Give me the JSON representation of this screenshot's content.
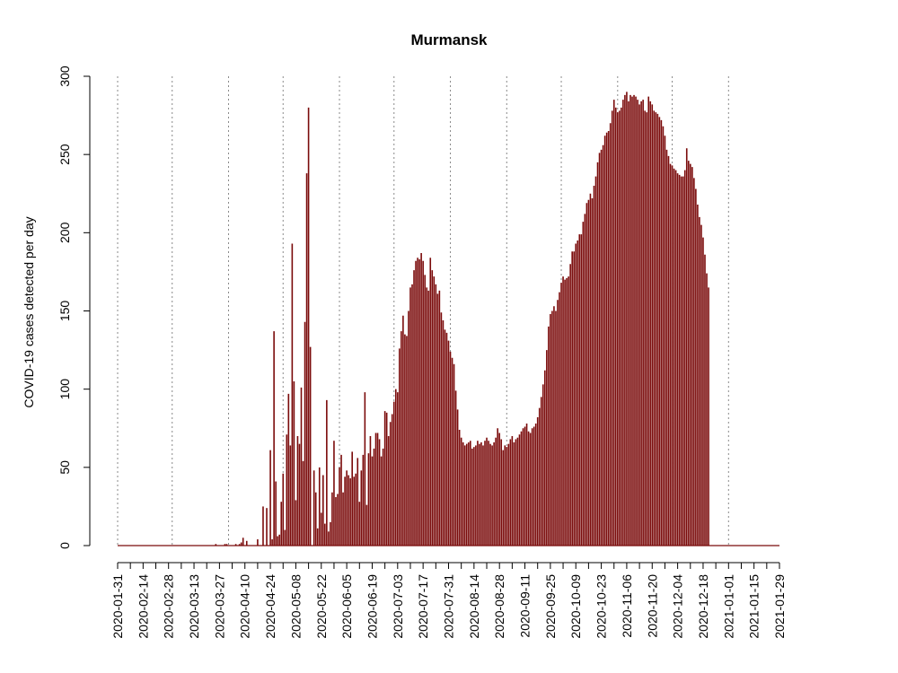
{
  "chart_data": {
    "type": "bar",
    "title": "Murmansk",
    "xlabel": "",
    "ylabel": "COVID-19 cases detected per day",
    "ylim": [
      0,
      300
    ],
    "yticks": [
      0,
      50,
      100,
      150,
      200,
      250,
      300
    ],
    "x_start": "2020-01-31",
    "x_end": "2021-01-29",
    "x_tick_labels": [
      "2020-01-31",
      "2020-02-14",
      "2020-02-28",
      "2020-03-13",
      "2020-03-27",
      "2020-04-10",
      "2020-04-24",
      "2020-05-08",
      "2020-05-22",
      "2020-06-05",
      "2020-06-19",
      "2020-07-03",
      "2020-07-17",
      "2020-07-31",
      "2020-08-14",
      "2020-08-28",
      "2020-09-11",
      "2020-09-25",
      "2020-10-09",
      "2020-10-23",
      "2020-11-06",
      "2020-11-20",
      "2020-12-04",
      "2020-12-18",
      "2021-01-01",
      "2021-01-15",
      "2021-01-29"
    ],
    "gridlines_x": [
      "2020-01-31",
      "2020-03-01",
      "2020-04-01",
      "2020-05-01",
      "2020-06-01",
      "2020-07-01",
      "2020-08-01",
      "2020-09-01",
      "2020-10-01",
      "2020-11-01",
      "2020-12-01",
      "2021-01-01"
    ],
    "grid": "vertical dotted lines at month starts",
    "bar_color": "#7a0a0a",
    "values": [
      0,
      0,
      0,
      0,
      0,
      0,
      0,
      0,
      0,
      0,
      0,
      0,
      0,
      0,
      0,
      0,
      0,
      0,
      0,
      0,
      0,
      0,
      0,
      0,
      0,
      0,
      0,
      0,
      0,
      0,
      0,
      0,
      0,
      0,
      0,
      0,
      0,
      0,
      0,
      0,
      0,
      0,
      0,
      0,
      0,
      0,
      0,
      0,
      0,
      0,
      0,
      0,
      0,
      0,
      1,
      0,
      0,
      0,
      0,
      1,
      1,
      0,
      0,
      0,
      0,
      1,
      0,
      1,
      2,
      5,
      0,
      3,
      0,
      0,
      0,
      0,
      0,
      4,
      0,
      0,
      25,
      0,
      24,
      0,
      61,
      4,
      137,
      41,
      6,
      7,
      28,
      46,
      10,
      71,
      97,
      64,
      193,
      105,
      29,
      70,
      65,
      101,
      54,
      143,
      238,
      280,
      127,
      0,
      48,
      34,
      11,
      50,
      21,
      45,
      14,
      93,
      9,
      15,
      34,
      67,
      31,
      33,
      50,
      58,
      34,
      44,
      48,
      45,
      43,
      60,
      44,
      46,
      56,
      28,
      48,
      58,
      98,
      26,
      59,
      70,
      57,
      62,
      72,
      72,
      68,
      57,
      62,
      86,
      85,
      70,
      79,
      84,
      92,
      100,
      98,
      126,
      137,
      147,
      135,
      134,
      150,
      165,
      167,
      176,
      182,
      184,
      183,
      187,
      182,
      173,
      165,
      163,
      184,
      176,
      172,
      167,
      161,
      163,
      149,
      144,
      138,
      136,
      131,
      124,
      120,
      116,
      99,
      87,
      74,
      69,
      66,
      64,
      65,
      66,
      67,
      62,
      63,
      64,
      67,
      65,
      66,
      64,
      67,
      69,
      67,
      65,
      64,
      66,
      69,
      75,
      72,
      68,
      61,
      64,
      63,
      65,
      68,
      70,
      66,
      68,
      69,
      71,
      73,
      75,
      76,
      78,
      73,
      72,
      75,
      76,
      78,
      82,
      88,
      95,
      103,
      112,
      125,
      140,
      148,
      150,
      153,
      150,
      157,
      162,
      168,
      172,
      170,
      171,
      172,
      180,
      188,
      188,
      193,
      195,
      199,
      199,
      207,
      212,
      219,
      221,
      225,
      222,
      230,
      236,
      245,
      251,
      253,
      256,
      262,
      264,
      265,
      270,
      278,
      285,
      280,
      277,
      278,
      280,
      285,
      288,
      290,
      284,
      288,
      287,
      288,
      287,
      285,
      282,
      284,
      285,
      278,
      277,
      287,
      284,
      282,
      278,
      277,
      276,
      274,
      272,
      268,
      262,
      253,
      249,
      244,
      243,
      241,
      240,
      238,
      237,
      236,
      236,
      240,
      254,
      246,
      244,
      242,
      235,
      228,
      218,
      210,
      205,
      197,
      186,
      174,
      165
    ]
  }
}
